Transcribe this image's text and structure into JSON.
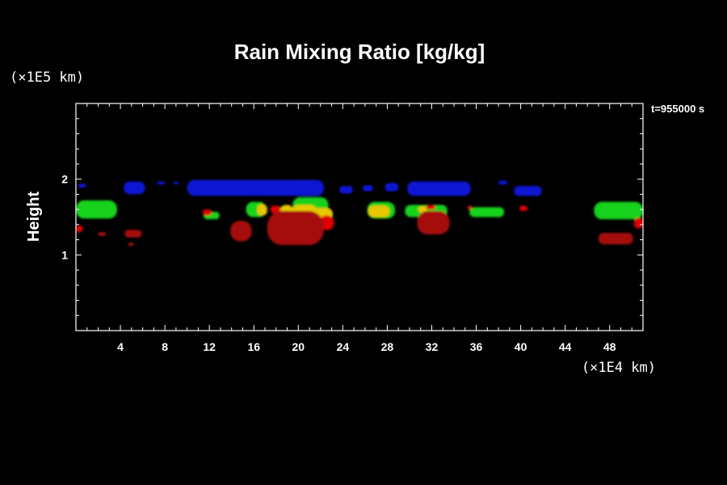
{
  "chart_data": {
    "type": "heatmap",
    "title": "Rain Mixing Ratio [kg/kg]",
    "ylabel": "Height",
    "x_unit": "(×1E4 km)",
    "y_unit": "(×1E5 km)",
    "time_label": "t=955000 s",
    "xlim": [
      0,
      51
    ],
    "ylim": [
      0,
      3
    ],
    "x_major_ticks": [
      4,
      8,
      12,
      16,
      20,
      24,
      28,
      32,
      36,
      40,
      44,
      48
    ],
    "x_minor_step": 1,
    "y_major_ticks": [
      1,
      2
    ],
    "y_minor_step": 0.2,
    "colors": {
      "blue": "#0a14d2",
      "green": "#18d21a",
      "yellow": "#e6c800",
      "red": "#e00000",
      "dark_red": "#a51010"
    },
    "regions": [
      {
        "color": "blue",
        "x": [
          0.2,
          0.9
        ],
        "y": [
          1.89,
          1.94
        ]
      },
      {
        "color": "blue",
        "x": [
          4.3,
          6.2
        ],
        "y": [
          1.8,
          1.97
        ]
      },
      {
        "color": "blue",
        "x": [
          7.3,
          8.0
        ],
        "y": [
          1.93,
          1.97
        ]
      },
      {
        "color": "blue",
        "x": [
          8.8,
          9.2
        ],
        "y": [
          1.93,
          1.97
        ]
      },
      {
        "color": "blue",
        "x": [
          10.0,
          22.3
        ],
        "y": [
          1.78,
          1.99
        ]
      },
      {
        "color": "blue",
        "x": [
          23.7,
          24.9
        ],
        "y": [
          1.81,
          1.91
        ]
      },
      {
        "color": "blue",
        "x": [
          25.8,
          26.7
        ],
        "y": [
          1.84,
          1.92
        ]
      },
      {
        "color": "blue",
        "x": [
          27.8,
          29.0
        ],
        "y": [
          1.84,
          1.95
        ]
      },
      {
        "color": "blue",
        "x": [
          29.8,
          35.5
        ],
        "y": [
          1.78,
          1.97
        ]
      },
      {
        "color": "blue",
        "x": [
          38.0,
          38.8
        ],
        "y": [
          1.93,
          1.98
        ]
      },
      {
        "color": "blue",
        "x": [
          39.4,
          41.9
        ],
        "y": [
          1.78,
          1.91
        ]
      },
      {
        "color": "green",
        "x": [
          0.0,
          3.7
        ],
        "y": [
          1.48,
          1.72
        ]
      },
      {
        "color": "green",
        "x": [
          11.5,
          12.9
        ],
        "y": [
          1.47,
          1.57
        ]
      },
      {
        "color": "green",
        "x": [
          15.3,
          17.1
        ],
        "y": [
          1.5,
          1.7
        ]
      },
      {
        "color": "green",
        "x": [
          19.5,
          22.7
        ],
        "y": [
          1.55,
          1.76
        ]
      },
      {
        "color": "green",
        "x": [
          26.2,
          28.7
        ],
        "y": [
          1.48,
          1.7
        ]
      },
      {
        "color": "green",
        "x": [
          29.6,
          33.4
        ],
        "y": [
          1.5,
          1.66
        ]
      },
      {
        "color": "green",
        "x": [
          35.4,
          38.5
        ],
        "y": [
          1.5,
          1.63
        ]
      },
      {
        "color": "green",
        "x": [
          46.6,
          51.0
        ],
        "y": [
          1.47,
          1.7
        ]
      },
      {
        "color": "yellow",
        "x": [
          16.3,
          17.2
        ],
        "y": [
          1.52,
          1.67
        ]
      },
      {
        "color": "yellow",
        "x": [
          18.3,
          19.6
        ],
        "y": [
          1.44,
          1.66
        ]
      },
      {
        "color": "yellow",
        "x": [
          19.4,
          21.7
        ],
        "y": [
          1.47,
          1.66
        ]
      },
      {
        "color": "yellow",
        "x": [
          21.4,
          23.1
        ],
        "y": [
          1.45,
          1.62
        ]
      },
      {
        "color": "yellow",
        "x": [
          26.3,
          28.2
        ],
        "y": [
          1.5,
          1.65
        ]
      },
      {
        "color": "yellow",
        "x": [
          30.8,
          31.6
        ],
        "y": [
          1.56,
          1.64
        ]
      },
      {
        "color": "red",
        "x": [
          0.0,
          0.6
        ],
        "y": [
          1.3,
          1.39
        ]
      },
      {
        "color": "red",
        "x": [
          11.4,
          12.2
        ],
        "y": [
          1.52,
          1.6
        ]
      },
      {
        "color": "red",
        "x": [
          17.5,
          18.4
        ],
        "y": [
          1.55,
          1.65
        ]
      },
      {
        "color": "red",
        "x": [
          21.9,
          23.2
        ],
        "y": [
          1.33,
          1.52
        ]
      },
      {
        "color": "red",
        "x": [
          31.5,
          32.3
        ],
        "y": [
          1.6,
          1.66
        ]
      },
      {
        "color": "red",
        "x": [
          35.2,
          35.6
        ],
        "y": [
          1.6,
          1.65
        ]
      },
      {
        "color": "red",
        "x": [
          39.9,
          40.6
        ],
        "y": [
          1.58,
          1.65
        ]
      },
      {
        "color": "red",
        "x": [
          50.2,
          51.0
        ],
        "y": [
          1.35,
          1.49
        ]
      },
      {
        "color": "dark_red",
        "x": [
          2.0,
          2.7
        ],
        "y": [
          1.25,
          1.3
        ]
      },
      {
        "color": "dark_red",
        "x": [
          4.4,
          5.9
        ],
        "y": [
          1.23,
          1.33
        ]
      },
      {
        "color": "dark_red",
        "x": [
          4.7,
          5.2
        ],
        "y": [
          1.12,
          1.16
        ]
      },
      {
        "color": "dark_red",
        "x": [
          13.9,
          15.8
        ],
        "y": [
          1.18,
          1.45
        ]
      },
      {
        "color": "dark_red",
        "x": [
          17.2,
          22.3
        ],
        "y": [
          1.13,
          1.58
        ]
      },
      {
        "color": "dark_red",
        "x": [
          30.7,
          33.6
        ],
        "y": [
          1.27,
          1.58
        ]
      },
      {
        "color": "dark_red",
        "x": [
          47.0,
          50.1
        ],
        "y": [
          1.14,
          1.29
        ]
      }
    ]
  }
}
